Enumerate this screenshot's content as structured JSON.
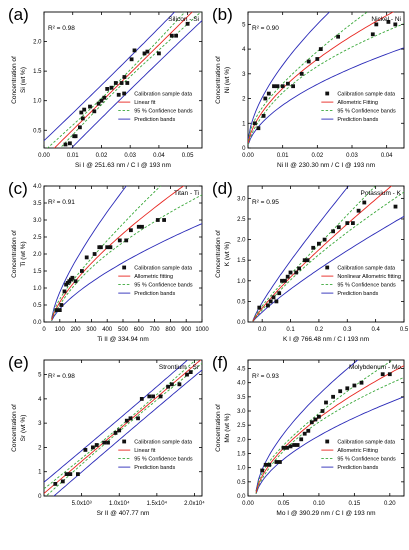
{
  "colors": {
    "data": "#111111",
    "fit": "#e8251f",
    "conf": "#3aa83a",
    "pred": "#2a2ab8",
    "frame": "#000000"
  },
  "legend_labels": {
    "data": "Calibration sample data",
    "conf": "95 % Confidence bands",
    "pred": "Prediction bands"
  },
  "chart_data": [
    {
      "type": "scatter",
      "letter": "(a)",
      "title": "Silicon - Si",
      "r2": "R² = 0.98",
      "ylabel_line1": "Concentration of",
      "ylabel_line2": "Si  (wt %)",
      "xlabel": "Si I @ 251.63 nm / C I @ 193 nm",
      "fit_label": "Linear fit",
      "legend_pos": "bottom-right",
      "xlim": [
        0,
        0.055
      ],
      "ylim": [
        0.2,
        2.5
      ],
      "xticks": [
        0.0,
        0.01,
        0.02,
        0.03,
        0.04,
        0.05
      ],
      "xtick_labels": [
        "0.00",
        "0.01",
        "0.02",
        "0.03",
        "0.04",
        "0.05"
      ],
      "yticks": [
        0.5,
        1.0,
        1.5,
        2.0
      ],
      "ytick_labels": [
        "0.5",
        "1.0",
        "1.5",
        "2.0"
      ],
      "x": [
        0.0075,
        0.009,
        0.0105,
        0.011,
        0.0125,
        0.013,
        0.0135,
        0.014,
        0.016,
        0.0175,
        0.019,
        0.02,
        0.021,
        0.022,
        0.0235,
        0.025,
        0.026,
        0.027,
        0.028,
        0.029,
        0.0305,
        0.0315,
        0.035,
        0.036,
        0.04,
        0.0445,
        0.046,
        0.05
      ],
      "y": [
        0.26,
        0.28,
        0.4,
        0.4,
        0.55,
        0.8,
        0.7,
        0.85,
        0.9,
        0.82,
        0.95,
        1.0,
        1.05,
        1.2,
        1.22,
        1.3,
        1.1,
        1.3,
        1.4,
        1.3,
        1.7,
        1.85,
        1.8,
        1.83,
        1.8,
        2.1,
        2.1,
        2.3
      ]
    },
    {
      "type": "scatter",
      "letter": "(b)",
      "title": "Nickel - Ni",
      "r2": "R² = 0.90",
      "ylabel_line1": "Concentration of",
      "ylabel_line2": "Ni  (wt %)",
      "xlabel": "Ni II @ 230.30 nm / C I @ 193 nm",
      "fit_label": "Allometric Fitting",
      "legend_pos": "bottom-right",
      "xlim": [
        0,
        0.045
      ],
      "ylim": [
        0,
        5.5
      ],
      "xticks": [
        0.0,
        0.01,
        0.02,
        0.03,
        0.04
      ],
      "xtick_labels": [
        "0.00",
        "0.01",
        "0.02",
        "0.03",
        "0.04"
      ],
      "yticks": [
        0,
        1,
        2,
        3,
        4,
        5
      ],
      "ytick_labels": [
        "0",
        "1",
        "2",
        "3",
        "4",
        "5"
      ],
      "x": [
        0.002,
        0.003,
        0.0045,
        0.005,
        0.006,
        0.0075,
        0.0085,
        0.01,
        0.0115,
        0.013,
        0.0155,
        0.0175,
        0.02,
        0.021,
        0.026,
        0.036,
        0.037,
        0.0405,
        0.0425
      ],
      "y": [
        1.0,
        0.8,
        1.3,
        2.0,
        2.2,
        2.5,
        2.5,
        2.5,
        2.6,
        2.5,
        3.0,
        3.5,
        3.6,
        4.0,
        4.5,
        4.6,
        5.0,
        5.1,
        5.0
      ]
    },
    {
      "type": "scatter",
      "letter": "(c)",
      "title": "Titan - Ti",
      "r2": "R² = 0.91",
      "ylabel_line1": "Concentration of",
      "ylabel_line2": "Ti  (wt %)",
      "xlabel": "Ti II @ 334.94 nm",
      "fit_label": "Allometric fitting",
      "legend_pos": "bottom-right",
      "xlim": [
        0,
        1000
      ],
      "ylim": [
        0,
        4.0
      ],
      "xticks": [
        0,
        100,
        200,
        300,
        400,
        500,
        600,
        700,
        800,
        900,
        1000
      ],
      "xtick_labels": [
        "0",
        "100",
        "200",
        "300",
        "400",
        "500",
        "600",
        "700",
        "800",
        "900",
        "1000"
      ],
      "yticks": [
        0,
        0.5,
        1.0,
        1.5,
        2.0,
        2.5,
        3.0,
        3.5,
        4.0
      ],
      "ytick_labels": [
        "0.0",
        "0.5",
        "1.0",
        "1.5",
        "2.0",
        "2.5",
        "3.0",
        "3.5",
        "4.0"
      ],
      "x": [
        80,
        100,
        110,
        130,
        140,
        150,
        160,
        170,
        180,
        200,
        240,
        270,
        320,
        350,
        360,
        400,
        420,
        480,
        520,
        550,
        600,
        620,
        720,
        760
      ],
      "y": [
        0.35,
        0.35,
        0.5,
        0.9,
        1.1,
        1.15,
        1.2,
        1.25,
        1.3,
        1.2,
        1.5,
        1.9,
        2.0,
        2.2,
        2.2,
        2.2,
        2.2,
        2.4,
        2.4,
        2.7,
        2.8,
        2.8,
        3.0,
        3.0
      ]
    },
    {
      "type": "scatter",
      "letter": "(d)",
      "title": "Potassium - K",
      "r2": "R² = 0.95",
      "ylabel_line1": "Concentration of",
      "ylabel_line2": "K  (wt %)",
      "xlabel": "K I @ 766.48 nm / C I 193 nm",
      "fit_label": "Nonlinear Allometric fitting",
      "legend_pos": "bottom-right",
      "xlim": [
        -0.05,
        0.5
      ],
      "ylim": [
        0,
        3.3
      ],
      "xticks": [
        0.0,
        0.1,
        0.2,
        0.3,
        0.4,
        0.5
      ],
      "xtick_labels": [
        "0.0",
        "0.1",
        "0.2",
        "0.3",
        "0.4",
        "0.5"
      ],
      "yticks": [
        0,
        0.5,
        1.0,
        1.5,
        2.0,
        2.5,
        3.0
      ],
      "ytick_labels": [
        "0.0",
        "0.5",
        "1.0",
        "1.5",
        "2.0",
        "2.5",
        "3.0"
      ],
      "x": [
        -0.01,
        0.02,
        0.03,
        0.04,
        0.05,
        0.06,
        0.07,
        0.08,
        0.09,
        0.1,
        0.12,
        0.13,
        0.15,
        0.16,
        0.18,
        0.2,
        0.22,
        0.25,
        0.27,
        0.3,
        0.32,
        0.34,
        0.36,
        0.47
      ],
      "y": [
        0.35,
        0.4,
        0.5,
        0.6,
        0.5,
        0.7,
        1.0,
        1.0,
        1.1,
        1.2,
        1.2,
        1.3,
        1.5,
        1.5,
        1.8,
        1.9,
        2.0,
        2.2,
        2.3,
        2.4,
        2.4,
        2.7,
        2.9,
        2.8
      ]
    },
    {
      "type": "scatter",
      "letter": "(e)",
      "title": "Strontium - Sr",
      "r2": "R² = 0.98",
      "ylabel_line1": "Concentration of",
      "ylabel_line2": "Sr  (wt %)",
      "xlabel": "Sr II @ 407.77 nm",
      "fit_label": "Linear fit",
      "legend_pos": "bottom-right",
      "xlim": [
        0,
        21000
      ],
      "ylim": [
        0,
        5.6
      ],
      "xticks": [
        5000,
        10000,
        15000,
        20000
      ],
      "xtick_labels": [
        "5.0x10³",
        "1.0x10⁴",
        "1.5x10⁴",
        "2.0x10⁴"
      ],
      "yticks": [
        0,
        1,
        2,
        3,
        4,
        5
      ],
      "ytick_labels": [
        "0",
        "1",
        "2",
        "3",
        "4",
        "5"
      ],
      "x": [
        1500,
        2500,
        3000,
        3500,
        4500,
        5500,
        6500,
        7000,
        8000,
        8500,
        9500,
        10000,
        11000,
        11500,
        12500,
        13000,
        14000,
        14500,
        15500,
        16500,
        17000,
        18000,
        19000,
        19500
      ],
      "y": [
        0.5,
        0.6,
        0.9,
        0.9,
        0.9,
        1.9,
        2.0,
        2.1,
        2.2,
        2.2,
        2.6,
        2.7,
        3.1,
        3.2,
        3.2,
        4.0,
        4.1,
        4.1,
        4.1,
        4.5,
        4.6,
        4.6,
        5.0,
        5.1
      ]
    },
    {
      "type": "scatter",
      "letter": "(f)",
      "title": "Molybdenum - Mo",
      "r2": "R² = 0.93",
      "ylabel_line1": "Concentration of",
      "ylabel_line2": "Mo  (wt %)",
      "xlabel": "Mo I @ 390.29 nm / C I @ 193 nm",
      "fit_label": "Allometric Fitting",
      "legend_pos": "bottom-right",
      "xlim": [
        0,
        0.22
      ],
      "ylim": [
        0,
        4.8
      ],
      "xticks": [
        0.0,
        0.05,
        0.1,
        0.15,
        0.2
      ],
      "xtick_labels": [
        "0.00",
        "0.05",
        "0.10",
        "0.15",
        "0.20"
      ],
      "yticks": [
        0,
        0.5,
        1.0,
        1.5,
        2.0,
        2.5,
        3.0,
        3.5,
        4.0,
        4.5
      ],
      "ytick_labels": [
        "0.0",
        "0.5",
        "1.0",
        "1.5",
        "2.0",
        "2.5",
        "3.0",
        "3.5",
        "4.0",
        "4.5"
      ],
      "x": [
        0.02,
        0.025,
        0.03,
        0.04,
        0.045,
        0.05,
        0.055,
        0.06,
        0.065,
        0.07,
        0.075,
        0.08,
        0.085,
        0.09,
        0.095,
        0.1,
        0.105,
        0.11,
        0.12,
        0.13,
        0.14,
        0.15,
        0.16,
        0.19,
        0.2
      ],
      "y": [
        0.9,
        1.1,
        1.1,
        1.2,
        1.2,
        1.7,
        1.7,
        1.75,
        1.8,
        1.8,
        2.0,
        2.2,
        2.3,
        2.6,
        2.7,
        2.8,
        3.0,
        3.3,
        3.5,
        3.7,
        3.8,
        3.9,
        4.0,
        4.3,
        4.3
      ]
    }
  ]
}
